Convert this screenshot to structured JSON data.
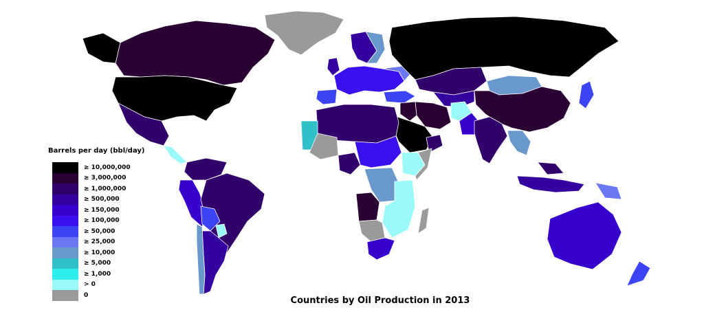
{
  "title": "Countries by Oil Production in 2013",
  "legend": {
    "title": "Barrels per day (bbl/day)",
    "items": [
      {
        "label": "≥ 10,000,000",
        "color": "#000000"
      },
      {
        "label": "≥ 3,000,000",
        "color": "#2a0034"
      },
      {
        "label": "≥ 1,000,000",
        "color": "#31006a"
      },
      {
        "label": "≥ 500,000",
        "color": "#3400a0"
      },
      {
        "label": "≥ 150,000",
        "color": "#3700cc"
      },
      {
        "label": "≥ 100,000",
        "color": "#3a10ee"
      },
      {
        "label": "≥ 50,000",
        "color": "#3c44f6"
      },
      {
        "label": "≥ 25,000",
        "color": "#6a78f4"
      },
      {
        "label": "≥ 10,000",
        "color": "#6898cc"
      },
      {
        "label": "≥ 5,000",
        "color": "#30c0c8"
      },
      {
        "label": "≥ 1,000",
        "color": "#2eeeee"
      },
      {
        "label": "> 0",
        "color": "#9afafa"
      },
      {
        "label": "0",
        "color": "#9a9a9a"
      }
    ]
  }
}
